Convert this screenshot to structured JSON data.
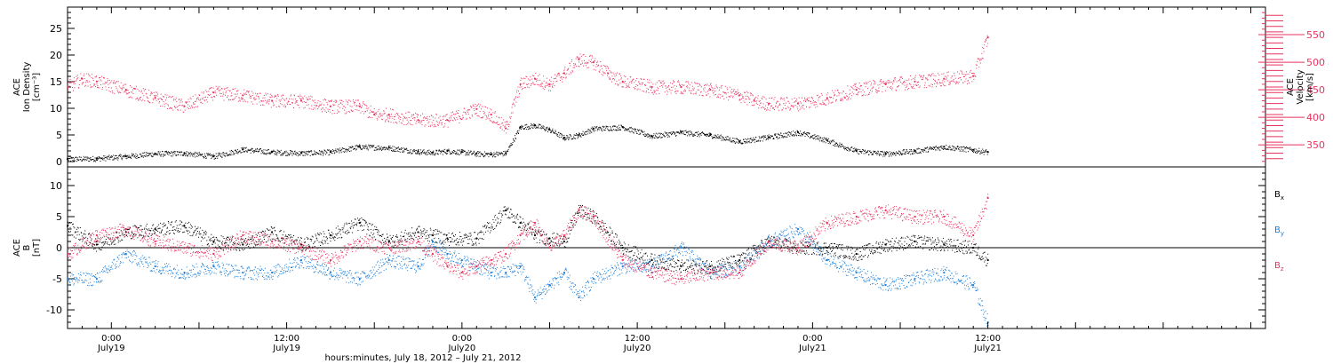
{
  "colors": {
    "density": "#000000",
    "velocity": "#e8335f",
    "bx": "#000000",
    "by": "#1f7fd8",
    "bz": "#e8335f",
    "axis": "#000000"
  },
  "chart_data": [
    {
      "type": "scatter",
      "panel": "plasma",
      "ylabel_left_lines": [
        "ACE",
        "Ion Density",
        "[cm⁻³]"
      ],
      "ylabel_right_lines": [
        "ACE",
        "Velocity",
        "[km/s]"
      ],
      "ylim_left": [
        -1,
        29
      ],
      "yticks_left": [
        0,
        5,
        10,
        15,
        20,
        25
      ],
      "ylim_right": [
        310,
        600
      ],
      "yticks_right": [
        350,
        400,
        450,
        500,
        550
      ],
      "series": [
        {
          "axis": "left",
          "color": "density",
          "x": [
            0,
            4,
            8,
            12,
            16,
            20,
            24,
            28,
            32,
            36,
            40,
            44,
            48,
            50,
            52,
            54,
            56,
            58,
            60,
            62,
            64,
            66,
            68,
            70,
            72,
            76,
            80,
            84,
            88,
            92,
            96,
            100,
            104,
            108,
            112,
            116,
            120,
            124,
            126
          ],
          "values": [
            0.5,
            0.6,
            1.0,
            1.5,
            1.6,
            1.0,
            2.3,
            1.8,
            1.6,
            1.8,
            2.8,
            2.6,
            1.9,
            1.7,
            2.0,
            1.8,
            1.5,
            1.4,
            1.6,
            6.5,
            6.8,
            6.0,
            4.5,
            5.0,
            6.2,
            6.5,
            4.8,
            5.5,
            5.0,
            3.8,
            4.6,
            5.5,
            4.0,
            2.0,
            1.5,
            2.0,
            2.8,
            2.2,
            1.8
          ]
        },
        {
          "axis": "right",
          "color": "velocity",
          "x": [
            0,
            2,
            4,
            8,
            12,
            16,
            20,
            24,
            28,
            32,
            36,
            40,
            42,
            44,
            48,
            52,
            56,
            58,
            60,
            62,
            64,
            66,
            68,
            70,
            72,
            74,
            76,
            80,
            84,
            88,
            92,
            94,
            96,
            100,
            104,
            108,
            112,
            116,
            120,
            124,
            126
          ],
          "values": [
            455,
            470,
            465,
            450,
            435,
            420,
            445,
            440,
            430,
            430,
            420,
            420,
            405,
            405,
            395,
            395,
            415,
            405,
            380,
            460,
            470,
            460,
            480,
            505,
            500,
            480,
            465,
            455,
            455,
            450,
            440,
            430,
            425,
            425,
            435,
            450,
            460,
            465,
            470,
            475,
            545
          ]
        }
      ]
    },
    {
      "type": "scatter",
      "panel": "magnetic",
      "ylabel_left_lines": [
        "ACE",
        "B",
        "[nT]"
      ],
      "ylim": [
        -13,
        13
      ],
      "yticks": [
        -10,
        -5,
        0,
        5,
        10
      ],
      "series": [
        {
          "name": "Bx",
          "color": "bx",
          "x": [
            0,
            4,
            8,
            12,
            16,
            20,
            24,
            28,
            32,
            36,
            40,
            44,
            48,
            50,
            52,
            56,
            60,
            62,
            64,
            66,
            68,
            70,
            72,
            76,
            80,
            84,
            88,
            92,
            96,
            100,
            104,
            108,
            112,
            116,
            120,
            124,
            126
          ],
          "values": [
            3.5,
            0.5,
            2.5,
            3.0,
            3.5,
            1.0,
            0.5,
            2.5,
            0.5,
            2.0,
            4.0,
            1.0,
            2.5,
            2.0,
            1.5,
            1.5,
            6.0,
            4.0,
            2.0,
            1.5,
            1.0,
            6.0,
            5.0,
            0.0,
            -2.0,
            -3.0,
            -3.0,
            -2.0,
            1.0,
            0.0,
            0.0,
            -1.0,
            0.5,
            1.0,
            0.5,
            0.0,
            -2.0
          ]
        },
        {
          "name": "By",
          "color": "by",
          "x": [
            0,
            4,
            8,
            12,
            16,
            20,
            24,
            28,
            32,
            36,
            40,
            44,
            48,
            50,
            52,
            54,
            56,
            58,
            60,
            62,
            64,
            66,
            68,
            70,
            72,
            76,
            80,
            84,
            88,
            92,
            96,
            100,
            104,
            108,
            112,
            116,
            120,
            124,
            126
          ],
          "values": [
            -5,
            -5,
            -1,
            -3,
            -4,
            -3,
            -4,
            -4,
            -2,
            -4,
            -5,
            -2,
            -3,
            1,
            -1,
            -2,
            -3,
            -4,
            -4,
            -3,
            -8,
            -6,
            -4,
            -8,
            -5,
            -3,
            -3,
            0,
            -4,
            -3,
            1,
            3,
            -2,
            -4,
            -6,
            -5,
            -4,
            -6,
            -12
          ]
        },
        {
          "name": "Bz",
          "color": "bz",
          "x": [
            0,
            4,
            8,
            12,
            16,
            20,
            24,
            28,
            32,
            36,
            40,
            44,
            48,
            50,
            52,
            54,
            56,
            58,
            60,
            62,
            64,
            66,
            68,
            70,
            72,
            76,
            80,
            84,
            88,
            92,
            96,
            100,
            104,
            108,
            112,
            116,
            120,
            124,
            126
          ],
          "values": [
            -1,
            2,
            3,
            1,
            0,
            -1,
            2,
            1,
            0,
            -2,
            1,
            0,
            1,
            -1,
            -3,
            -4,
            -3,
            -2,
            -1,
            2,
            4,
            0,
            2,
            6,
            5,
            -2,
            -4,
            -5,
            -4,
            -4,
            1,
            0,
            4,
            5,
            6,
            5,
            5,
            2,
            8
          ]
        }
      ],
      "legend": [
        "B<sub>x</sub>",
        "B<sub>y</sub>",
        "B<sub>z</sub>"
      ],
      "legend_text": [
        "Bx",
        "By",
        "Bz"
      ],
      "legend_placement": "right, stacked"
    }
  ],
  "x_axis": {
    "range_hours": [
      0,
      164
    ],
    "tick_labels": [
      {
        "hour": 6,
        "time": "0:00",
        "date": "July19"
      },
      {
        "hour": 30,
        "time": "12:00",
        "date": "July19"
      },
      {
        "hour": 54,
        "time": "0:00",
        "date": "July20"
      },
      {
        "hour": 78,
        "time": "12:00",
        "date": "July20"
      },
      {
        "hour": 102,
        "time": "0:00",
        "date": "July21"
      },
      {
        "hour": 126,
        "time": "12:00",
        "date": "July21"
      }
    ],
    "label": "hours:minutes, July 18, 2012 – July 21, 2012"
  }
}
